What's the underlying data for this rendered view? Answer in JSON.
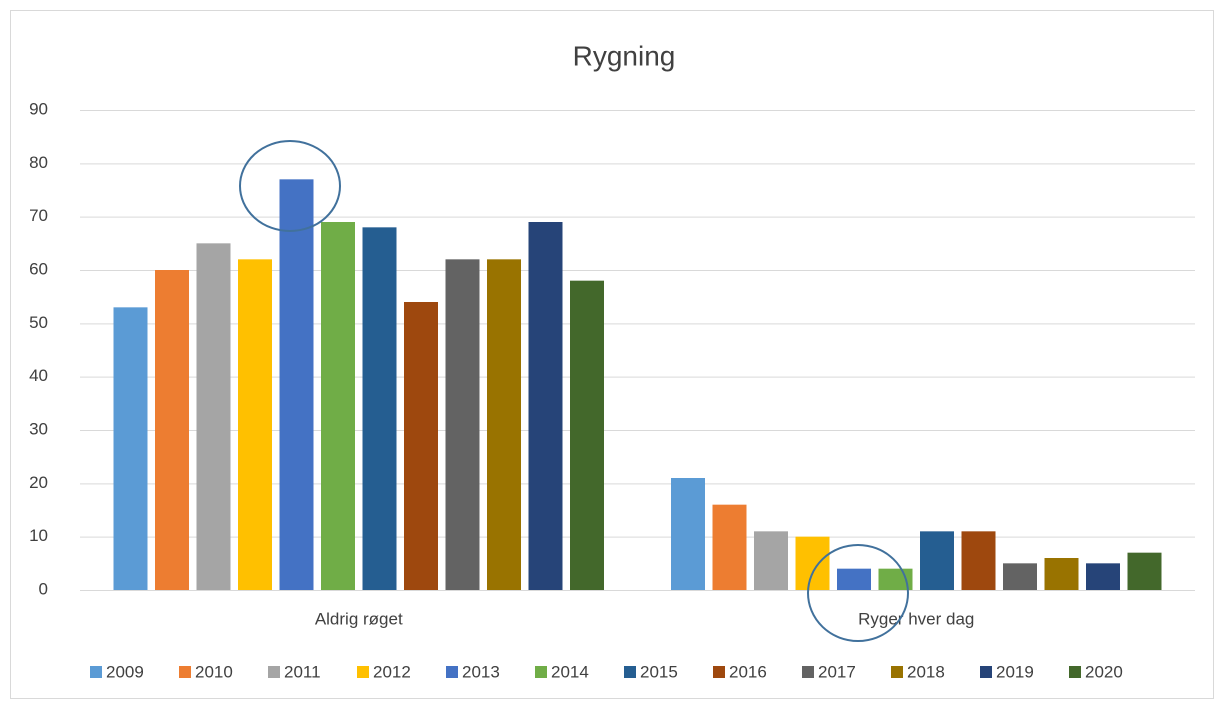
{
  "chart_data": {
    "type": "bar",
    "title": "Rygning",
    "categories": [
      "Aldrig røget",
      "Ryger hver dag"
    ],
    "series": [
      {
        "name": "2009",
        "color": "#5b9bd5",
        "values": [
          53,
          21
        ]
      },
      {
        "name": "2010",
        "color": "#ed7d31",
        "values": [
          60,
          16
        ]
      },
      {
        "name": "2011",
        "color": "#a5a5a5",
        "values": [
          65,
          11
        ]
      },
      {
        "name": "2012",
        "color": "#ffc000",
        "values": [
          62,
          10
        ]
      },
      {
        "name": "2013",
        "color": "#4472c4",
        "values": [
          77,
          4
        ]
      },
      {
        "name": "2014",
        "color": "#70ad47",
        "values": [
          69,
          4
        ]
      },
      {
        "name": "2015",
        "color": "#255e91",
        "values": [
          68,
          11
        ]
      },
      {
        "name": "2016",
        "color": "#9e480e",
        "values": [
          54,
          11
        ]
      },
      {
        "name": "2017",
        "color": "#636363",
        "values": [
          62,
          5
        ]
      },
      {
        "name": "2018",
        "color": "#997300",
        "values": [
          62,
          6
        ]
      },
      {
        "name": "2019",
        "color": "#264478",
        "values": [
          69,
          5
        ]
      },
      {
        "name": "2020",
        "color": "#43682b",
        "values": [
          58,
          7
        ]
      }
    ],
    "ylim": [
      0,
      90
    ],
    "yticks": [
      0,
      10,
      20,
      30,
      40,
      50,
      60,
      70,
      80,
      90
    ],
    "grid": true,
    "legend": "bottom"
  }
}
